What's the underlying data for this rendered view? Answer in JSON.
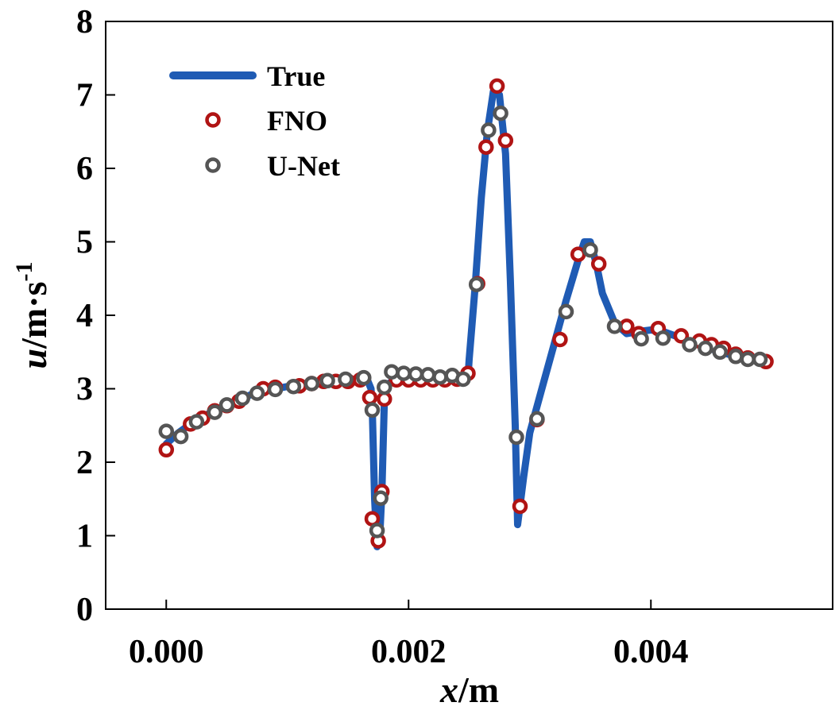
{
  "chart_data": {
    "type": "line",
    "xlabel": {
      "italic": "x",
      "unit": "/m"
    },
    "ylabel": {
      "italic": "u",
      "unit": "/m·s",
      "sup": "-1"
    },
    "xlim": [
      -0.0005,
      0.0055
    ],
    "ylim": [
      0,
      8
    ],
    "xticks": [
      {
        "value": 0.0,
        "label": "0.000"
      },
      {
        "value": 0.002,
        "label": "0.002"
      },
      {
        "value": 0.004,
        "label": "0.004"
      }
    ],
    "yticks": [
      {
        "value": 0,
        "label": "0"
      },
      {
        "value": 1,
        "label": "1"
      },
      {
        "value": 2,
        "label": "2"
      },
      {
        "value": 3,
        "label": "3"
      },
      {
        "value": 4,
        "label": "4"
      },
      {
        "value": 5,
        "label": "5"
      },
      {
        "value": 6,
        "label": "6"
      },
      {
        "value": 7,
        "label": "7"
      },
      {
        "value": 8,
        "label": "8"
      }
    ],
    "grid": false,
    "legend_position": "top-left",
    "series": [
      {
        "name": "True",
        "kind": "line",
        "color": "#1f5bb4",
        "points": [
          [
            0.0,
            2.25
          ],
          [
            0.0001,
            2.4
          ],
          [
            0.0002,
            2.52
          ],
          [
            0.0003,
            2.62
          ],
          [
            0.0004,
            2.7
          ],
          [
            0.0005,
            2.78
          ],
          [
            0.0006,
            2.85
          ],
          [
            0.0007,
            2.92
          ],
          [
            0.0008,
            2.97
          ],
          [
            0.0009,
            3.0
          ],
          [
            0.001,
            3.03
          ],
          [
            0.0011,
            3.05
          ],
          [
            0.0012,
            3.07
          ],
          [
            0.0013,
            3.09
          ],
          [
            0.0014,
            3.1
          ],
          [
            0.0015,
            3.11
          ],
          [
            0.0016,
            3.12
          ],
          [
            0.00166,
            3.12
          ],
          [
            0.00169,
            3.0
          ],
          [
            0.0017,
            2.75
          ],
          [
            0.00172,
            1.5
          ],
          [
            0.00174,
            0.85
          ],
          [
            0.00176,
            0.9
          ],
          [
            0.00178,
            1.6
          ],
          [
            0.0018,
            2.85
          ],
          [
            0.00182,
            3.05
          ],
          [
            0.00186,
            3.1
          ],
          [
            0.0019,
            3.1
          ],
          [
            0.002,
            3.1
          ],
          [
            0.0021,
            3.1
          ],
          [
            0.0022,
            3.1
          ],
          [
            0.0023,
            3.11
          ],
          [
            0.0024,
            3.13
          ],
          [
            0.00249,
            3.15
          ],
          [
            0.0025,
            3.4
          ],
          [
            0.00255,
            4.4
          ],
          [
            0.0026,
            5.6
          ],
          [
            0.00265,
            6.5
          ],
          [
            0.0027,
            7.05
          ],
          [
            0.00275,
            7.0
          ],
          [
            0.0028,
            6.2
          ],
          [
            0.00284,
            4.5
          ],
          [
            0.00288,
            2.5
          ],
          [
            0.0029,
            1.15
          ],
          [
            0.00295,
            1.8
          ],
          [
            0.003,
            2.4
          ],
          [
            0.0031,
            3.0
          ],
          [
            0.0032,
            3.6
          ],
          [
            0.0033,
            4.2
          ],
          [
            0.0034,
            4.75
          ],
          [
            0.00345,
            5.0
          ],
          [
            0.0035,
            5.0
          ],
          [
            0.00355,
            4.7
          ],
          [
            0.0036,
            4.3
          ],
          [
            0.0037,
            3.9
          ],
          [
            0.0038,
            3.75
          ],
          [
            0.0039,
            3.78
          ],
          [
            0.004,
            3.8
          ],
          [
            0.0041,
            3.78
          ],
          [
            0.0042,
            3.72
          ],
          [
            0.0043,
            3.66
          ],
          [
            0.0044,
            3.6
          ],
          [
            0.0045,
            3.54
          ],
          [
            0.0046,
            3.49
          ],
          [
            0.0047,
            3.44
          ],
          [
            0.0048,
            3.4
          ],
          [
            0.0049,
            3.38
          ]
        ]
      },
      {
        "name": "FNO",
        "kind": "scatter",
        "color": "#b01414",
        "points": [
          [
            0.0,
            2.17
          ],
          [
            0.0002,
            2.52
          ],
          [
            0.0003,
            2.6
          ],
          [
            0.0004,
            2.7
          ],
          [
            0.0005,
            2.77
          ],
          [
            0.0006,
            2.83
          ],
          [
            0.0008,
            3.0
          ],
          [
            0.0009,
            3.02
          ],
          [
            0.0011,
            3.04
          ],
          [
            0.0012,
            3.07
          ],
          [
            0.0013,
            3.1
          ],
          [
            0.0014,
            3.1
          ],
          [
            0.0015,
            3.1
          ],
          [
            0.0016,
            3.12
          ],
          [
            0.00168,
            2.88
          ],
          [
            0.0017,
            1.23
          ],
          [
            0.00175,
            0.93
          ],
          [
            0.00178,
            1.6
          ],
          [
            0.0018,
            2.86
          ],
          [
            0.0019,
            3.12
          ],
          [
            0.002,
            3.12
          ],
          [
            0.0021,
            3.12
          ],
          [
            0.0022,
            3.12
          ],
          [
            0.0023,
            3.12
          ],
          [
            0.0024,
            3.13
          ],
          [
            0.00249,
            3.21
          ],
          [
            0.00257,
            4.43
          ],
          [
            0.00264,
            6.29
          ],
          [
            0.00273,
            7.12
          ],
          [
            0.0028,
            6.38
          ],
          [
            0.00292,
            1.4
          ],
          [
            0.00306,
            2.58
          ],
          [
            0.00325,
            3.67
          ],
          [
            0.0034,
            4.83
          ],
          [
            0.00357,
            4.7
          ],
          [
            0.0038,
            3.85
          ],
          [
            0.0039,
            3.75
          ],
          [
            0.00406,
            3.82
          ],
          [
            0.00425,
            3.72
          ],
          [
            0.0044,
            3.65
          ],
          [
            0.0045,
            3.6
          ],
          [
            0.0046,
            3.55
          ],
          [
            0.0047,
            3.47
          ],
          [
            0.0048,
            3.42
          ],
          [
            0.00495,
            3.37
          ]
        ]
      },
      {
        "name": "U-Net",
        "kind": "scatter",
        "color": "#555555",
        "points": [
          [
            0.0,
            2.42
          ],
          [
            0.00012,
            2.35
          ],
          [
            0.00025,
            2.55
          ],
          [
            0.0004,
            2.68
          ],
          [
            0.0005,
            2.78
          ],
          [
            0.00063,
            2.87
          ],
          [
            0.00075,
            2.94
          ],
          [
            0.0009,
            2.99
          ],
          [
            0.00105,
            3.03
          ],
          [
            0.0012,
            3.07
          ],
          [
            0.00133,
            3.11
          ],
          [
            0.00148,
            3.13
          ],
          [
            0.00163,
            3.15
          ],
          [
            0.0017,
            2.71
          ],
          [
            0.00174,
            1.07
          ],
          [
            0.00177,
            1.51
          ],
          [
            0.0018,
            3.02
          ],
          [
            0.00186,
            3.23
          ],
          [
            0.00196,
            3.21
          ],
          [
            0.00206,
            3.2
          ],
          [
            0.00216,
            3.19
          ],
          [
            0.00226,
            3.16
          ],
          [
            0.00236,
            3.18
          ],
          [
            0.00245,
            3.13
          ],
          [
            0.00256,
            4.42
          ],
          [
            0.00266,
            6.52
          ],
          [
            0.00276,
            6.75
          ],
          [
            0.00289,
            2.34
          ],
          [
            0.00306,
            2.59
          ],
          [
            0.0033,
            4.05
          ],
          [
            0.0035,
            4.89
          ],
          [
            0.0037,
            3.85
          ],
          [
            0.00392,
            3.68
          ],
          [
            0.0041,
            3.69
          ],
          [
            0.00432,
            3.6
          ],
          [
            0.00445,
            3.55
          ],
          [
            0.00457,
            3.5
          ],
          [
            0.0047,
            3.44
          ],
          [
            0.0048,
            3.4
          ],
          [
            0.0049,
            3.4
          ]
        ]
      }
    ]
  }
}
